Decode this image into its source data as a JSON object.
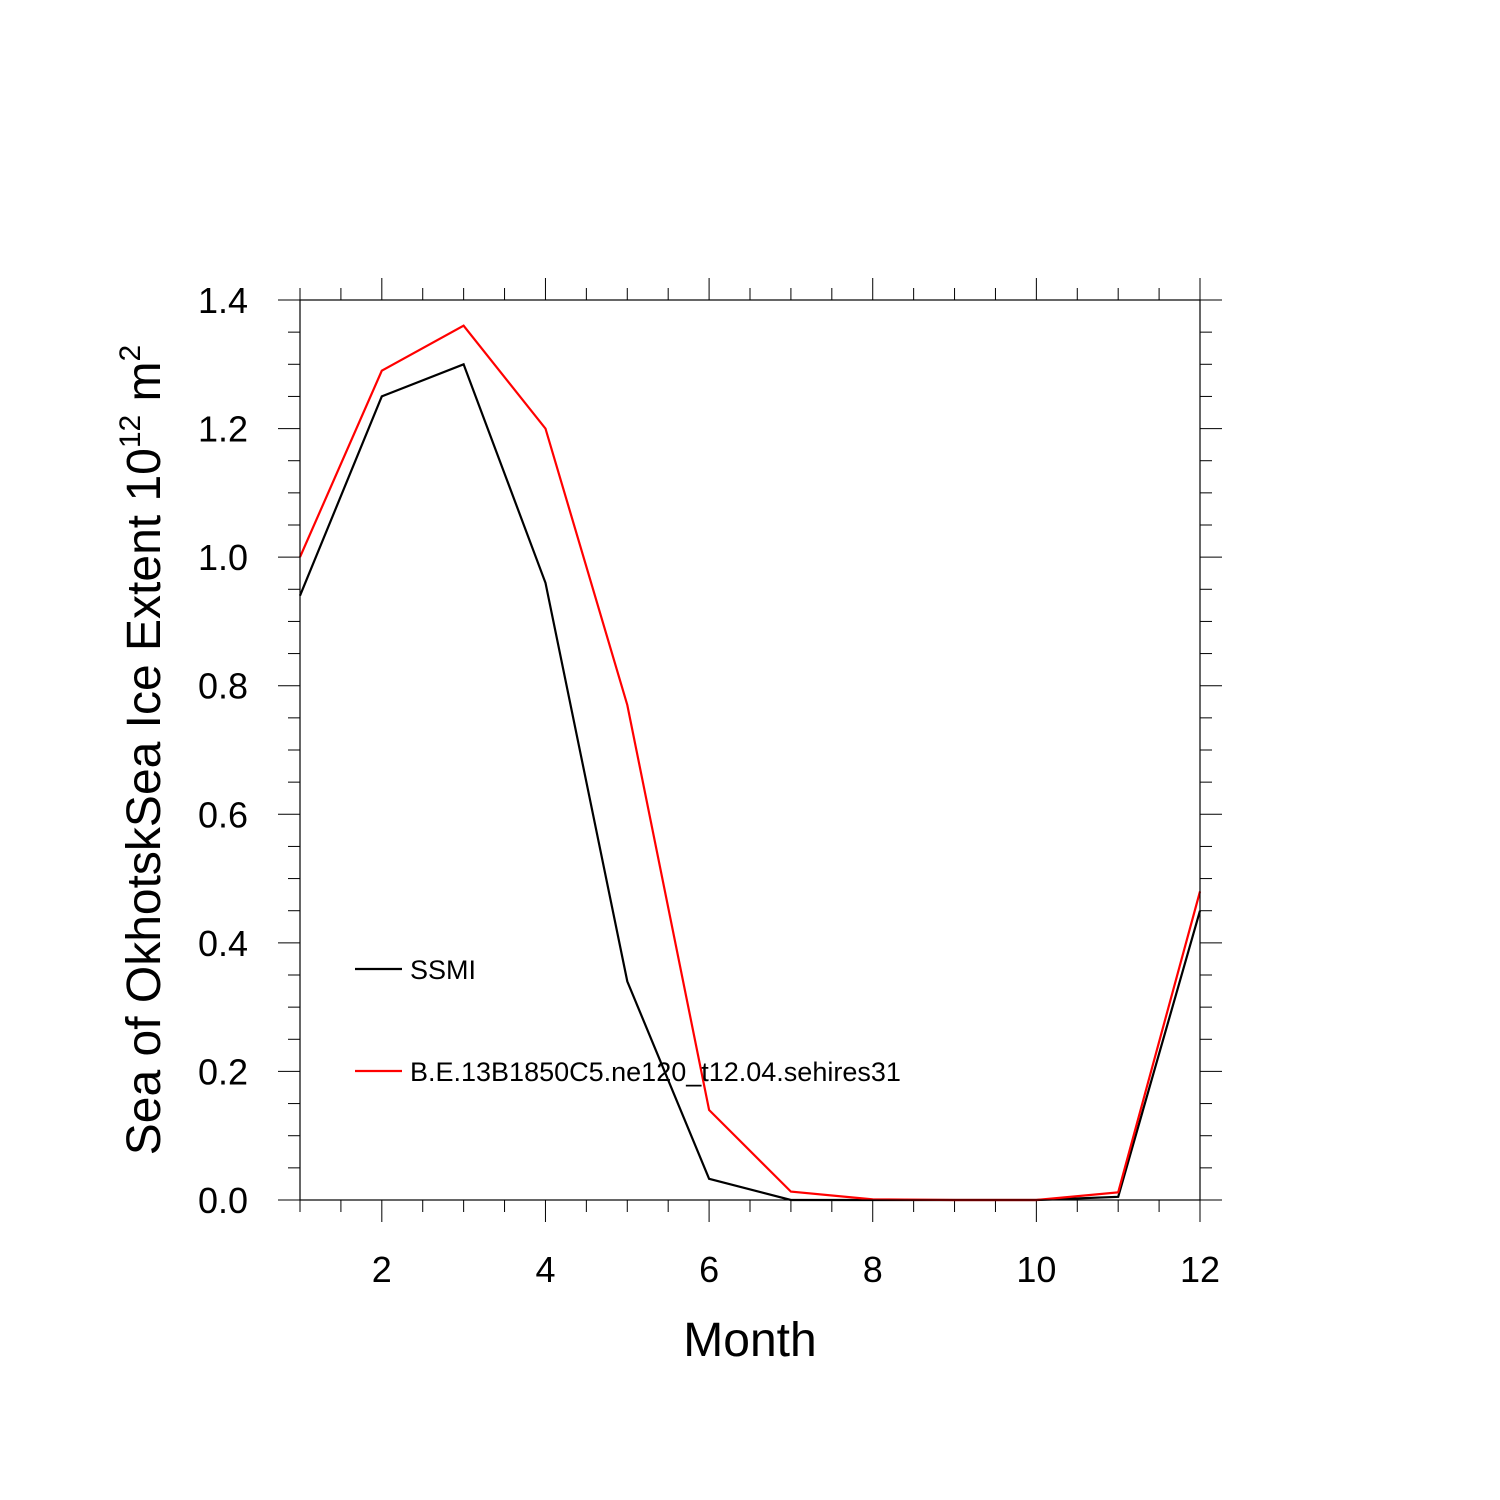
{
  "chart_data": {
    "type": "line",
    "xlabel": "Month",
    "ylabel": {
      "text": "Sea of OkhotskSea Ice Extent 10",
      "superscript": "12",
      "unit": " m",
      "unit_superscript": "2"
    },
    "xlim": [
      1,
      12
    ],
    "ylim": [
      0,
      1.4
    ],
    "x_ticks": [
      2,
      4,
      6,
      8,
      10,
      12
    ],
    "x_tick_labels": [
      "2",
      "4",
      "6",
      "8",
      "10",
      "12"
    ],
    "y_ticks": [
      0,
      0.2,
      0.4,
      0.6,
      0.8,
      1.0,
      1.2,
      1.4
    ],
    "y_tick_labels": [
      "0.0",
      "0.2",
      "0.4",
      "0.6",
      "0.8",
      "1.0",
      "1.2",
      "1.4"
    ],
    "x": [
      1,
      2,
      3,
      4,
      5,
      6,
      7,
      8,
      9,
      10,
      11,
      12
    ],
    "series": [
      {
        "name": "SSMI",
        "color": "#000000",
        "values": [
          0.94,
          1.25,
          1.3,
          0.96,
          0.34,
          0.033,
          0.0,
          0.0,
          0.0,
          0.0,
          0.005,
          0.45
        ]
      },
      {
        "name": "B.E.13B1850C5.ne120_t12.04.sehires31",
        "color": "#ff0000",
        "values": [
          1.0,
          1.29,
          1.36,
          1.2,
          0.77,
          0.14,
          0.013,
          0.001,
          0.0,
          0.0,
          0.012,
          0.48
        ]
      }
    ],
    "grid": false,
    "legend_position": "bottom-left, inside plot"
  }
}
